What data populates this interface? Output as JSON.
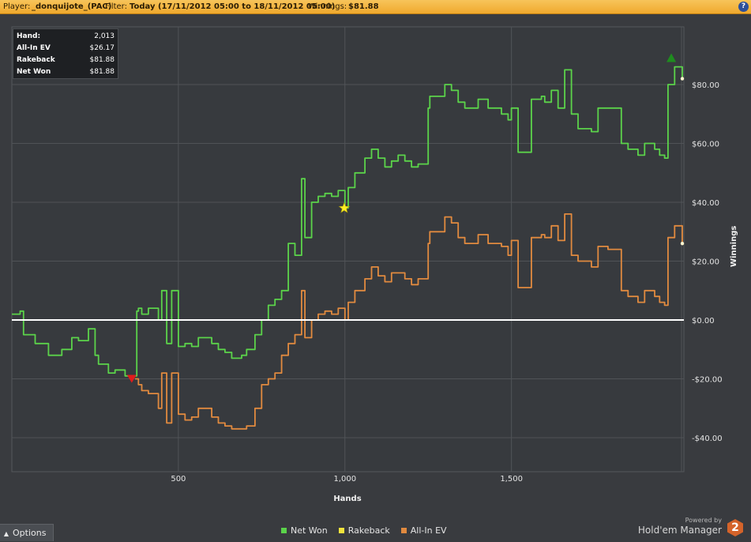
{
  "topbar": {
    "player_label": "Player:",
    "player_value": "_donquijote_(PAC)",
    "filter_label": "Filter:",
    "filter_value": "Today (17/11/2012 05:00 to 18/11/2012 05:00)",
    "winnings_label": "Winnings:",
    "winnings_value": "$81.88",
    "help_icon": "?"
  },
  "stats": {
    "rows": [
      {
        "key": "Hand:",
        "value": "2,013"
      },
      {
        "key": "All-In EV",
        "value": "$26.17"
      },
      {
        "key": "Rakeback",
        "value": "$81.88"
      },
      {
        "key": "Net Won",
        "value": "$81.88"
      }
    ]
  },
  "chart_data": {
    "type": "line",
    "xlabel": "Hands",
    "ylabel": "Winnings",
    "xlim": [
      0,
      2013
    ],
    "ylim": [
      -50,
      100
    ],
    "x_ticks": [
      500,
      1000,
      1500
    ],
    "x_tick_labels": [
      "500",
      "1,000",
      "1,500"
    ],
    "y_ticks": [
      -40,
      -20,
      0,
      20,
      40,
      60,
      80
    ],
    "y_tick_labels": [
      "-$40.00",
      "-$20.00",
      "$0.00",
      "$20.00",
      "$40.00",
      "$60.00",
      "$80.00"
    ],
    "grid": true,
    "legend_position": "bottom",
    "colors": {
      "net_won": "#5bd34a",
      "rakeback": "#f2e33c",
      "allin_ev": "#e18a3f",
      "zero_line": "#ffffff"
    },
    "series": [
      {
        "name": "Net Won",
        "x": [
          0,
          25,
          35,
          70,
          110,
          150,
          180,
          200,
          230,
          250,
          260,
          290,
          310,
          340,
          370,
          375,
          380,
          390,
          410,
          440,
          450,
          465,
          480,
          500,
          520,
          540,
          560,
          600,
          620,
          640,
          660,
          690,
          705,
          730,
          750,
          770,
          790,
          810,
          830,
          850,
          870,
          880,
          900,
          920,
          940,
          960,
          980,
          1000,
          1010,
          1030,
          1060,
          1080,
          1100,
          1120,
          1140,
          1160,
          1180,
          1200,
          1220,
          1250,
          1255,
          1280,
          1300,
          1320,
          1340,
          1360,
          1400,
          1430,
          1470,
          1490,
          1500,
          1520,
          1560,
          1590,
          1600,
          1620,
          1640,
          1660,
          1680,
          1700,
          1740,
          1760,
          1790,
          1830,
          1850,
          1880,
          1900,
          1930,
          1945,
          1960,
          1970,
          1990,
          2013
        ],
        "values": [
          2,
          3,
          -5,
          -8,
          -12,
          -10,
          -6,
          -7,
          -3,
          -12,
          -15,
          -18,
          -17,
          -19,
          -19,
          3,
          4,
          2,
          4,
          0,
          10,
          -8,
          10,
          -9,
          -8,
          -9,
          -6,
          -8,
          -10,
          -11,
          -13,
          -12,
          -10,
          -5,
          0,
          5,
          7,
          10,
          26,
          22,
          48,
          28,
          40,
          42,
          43,
          42,
          44,
          38,
          45,
          50,
          55,
          58,
          55,
          52,
          54,
          56,
          54,
          52,
          53,
          72,
          76,
          76,
          80,
          78,
          74,
          72,
          75,
          72,
          70,
          68,
          72,
          57,
          75,
          76,
          74,
          78,
          72,
          85,
          70,
          65,
          64,
          72,
          72,
          60,
          58,
          56,
          60,
          58,
          56,
          55,
          80,
          86,
          82
        ]
      },
      {
        "name": "All-In EV",
        "x": [
          370,
          380,
          390,
          410,
          440,
          450,
          465,
          480,
          500,
          520,
          540,
          560,
          600,
          620,
          640,
          660,
          690,
          705,
          730,
          750,
          770,
          790,
          810,
          830,
          850,
          870,
          880,
          900,
          920,
          940,
          960,
          980,
          1000,
          1010,
          1030,
          1060,
          1080,
          1100,
          1120,
          1140,
          1160,
          1180,
          1200,
          1220,
          1250,
          1255,
          1280,
          1300,
          1320,
          1340,
          1360,
          1400,
          1430,
          1470,
          1490,
          1500,
          1520,
          1560,
          1590,
          1600,
          1620,
          1640,
          1660,
          1680,
          1700,
          1740,
          1760,
          1790,
          1830,
          1850,
          1880,
          1900,
          1930,
          1945,
          1960,
          1970,
          1990,
          2013
        ],
        "values": [
          -20,
          -22,
          -24,
          -25,
          -30,
          -18,
          -35,
          -18,
          -32,
          -34,
          -33,
          -30,
          -33,
          -35,
          -36,
          -37,
          -37,
          -36,
          -30,
          -22,
          -20,
          -18,
          -12,
          -8,
          -5,
          10,
          -6,
          0,
          2,
          3,
          2,
          4,
          0,
          6,
          10,
          14,
          18,
          15,
          13,
          16,
          16,
          14,
          12,
          14,
          26,
          30,
          30,
          35,
          33,
          28,
          26,
          29,
          26,
          25,
          22,
          27,
          11,
          28,
          29,
          28,
          32,
          27,
          36,
          22,
          20,
          18,
          25,
          24,
          10,
          8,
          6,
          10,
          8,
          6,
          5,
          28,
          32,
          26
        ]
      },
      {
        "name": "Rakeback",
        "x": [],
        "values": []
      }
    ],
    "markers": [
      {
        "shape": "triangle-down",
        "color": "#e21c1c",
        "x": 360,
        "y": -20
      },
      {
        "shape": "star",
        "color": "#ffee22",
        "x": 998,
        "y": 38
      },
      {
        "shape": "triangle-up",
        "color": "#1f8c1f",
        "x": 1980,
        "y": 89
      }
    ]
  },
  "footer": {
    "options_label": "Options",
    "legend_items": [
      {
        "name": "Net Won",
        "color": "#5bd34a"
      },
      {
        "name": "Rakeback",
        "color": "#f2e33c"
      },
      {
        "name": "All-In EV",
        "color": "#e18a3f"
      }
    ],
    "powered_by": "Powered by",
    "brand_name": "Hold'em Manager",
    "brand_badge": "2"
  }
}
